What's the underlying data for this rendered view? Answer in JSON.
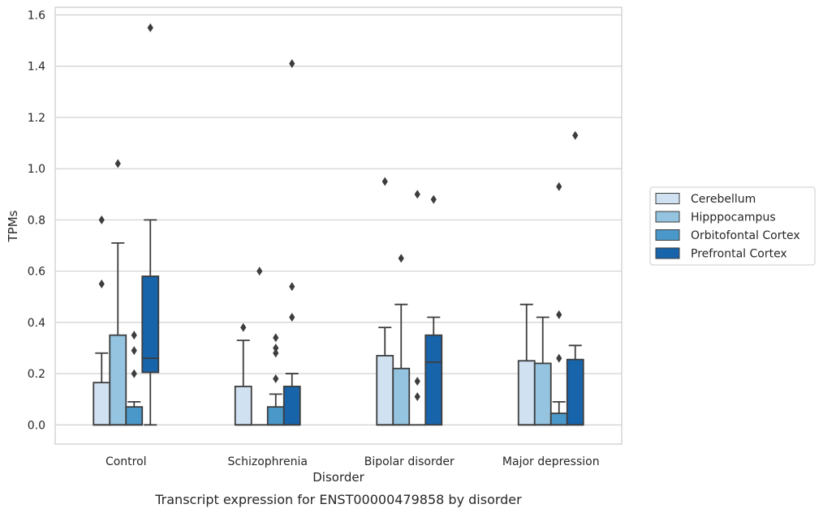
{
  "chart_data": {
    "type": "box",
    "caption": "Transcript expression for ENST00000479858 by disorder",
    "xlabel": "Disorder",
    "ylabel": "TPMs",
    "ylim": [
      -0.075,
      1.63
    ],
    "yticks": [
      "0.0",
      "0.2",
      "0.4",
      "0.6",
      "0.8",
      "1.0",
      "1.2",
      "1.4",
      "1.6"
    ],
    "grid": "horizontal",
    "legend_position": "right",
    "categories": [
      "Control",
      "Schizophrenia",
      "Bipolar disorder",
      "Major depression"
    ],
    "series": [
      {
        "name": "Cerebellum",
        "color": "#d0e1f2",
        "boxes": [
          {
            "q1": 0.0,
            "median": 0.0,
            "q3": 0.165,
            "whisker_low": 0.0,
            "whisker_high": 0.28,
            "outliers": [
              0.55,
              0.8
            ]
          },
          {
            "q1": 0.0,
            "median": 0.0,
            "q3": 0.15,
            "whisker_low": 0.0,
            "whisker_high": 0.33,
            "outliers": [
              0.38
            ]
          },
          {
            "q1": 0.0,
            "median": 0.0,
            "q3": 0.27,
            "whisker_low": 0.0,
            "whisker_high": 0.38,
            "outliers": [
              0.95
            ]
          },
          {
            "q1": 0.0,
            "median": 0.0,
            "q3": 0.25,
            "whisker_low": 0.0,
            "whisker_high": 0.47,
            "outliers": []
          }
        ]
      },
      {
        "name": "Hipppocampus",
        "color": "#94c4df",
        "boxes": [
          {
            "q1": 0.0,
            "median": 0.0,
            "q3": 0.35,
            "whisker_low": 0.0,
            "whisker_high": 0.71,
            "outliers": [
              1.02
            ]
          },
          {
            "q1": 0.0,
            "median": 0.0,
            "q3": 0.0,
            "whisker_low": 0.0,
            "whisker_high": 0.0,
            "outliers": [
              0.6
            ]
          },
          {
            "q1": 0.0,
            "median": 0.0,
            "q3": 0.22,
            "whisker_low": 0.0,
            "whisker_high": 0.47,
            "outliers": [
              0.65
            ]
          },
          {
            "q1": 0.0,
            "median": 0.0,
            "q3": 0.24,
            "whisker_low": 0.0,
            "whisker_high": 0.42,
            "outliers": []
          }
        ]
      },
      {
        "name": "Orbitofontal Cortex",
        "color": "#4a98c9",
        "boxes": [
          {
            "q1": 0.0,
            "median": 0.0,
            "q3": 0.07,
            "whisker_low": 0.0,
            "whisker_high": 0.09,
            "outliers": [
              0.2,
              0.29,
              0.35
            ]
          },
          {
            "q1": 0.0,
            "median": 0.0,
            "q3": 0.07,
            "whisker_low": 0.0,
            "whisker_high": 0.12,
            "outliers": [
              0.18,
              0.28,
              0.3,
              0.34
            ]
          },
          {
            "q1": 0.0,
            "median": 0.0,
            "q3": 0.0,
            "whisker_low": 0.0,
            "whisker_high": 0.0,
            "outliers": [
              0.11,
              0.17,
              0.9
            ]
          },
          {
            "q1": 0.0,
            "median": 0.0,
            "q3": 0.045,
            "whisker_low": 0.0,
            "whisker_high": 0.09,
            "outliers": [
              0.26,
              0.43,
              0.93
            ]
          }
        ]
      },
      {
        "name": "Prefrontal Cortex",
        "color": "#1764ab",
        "boxes": [
          {
            "q1": 0.205,
            "median": 0.26,
            "q3": 0.58,
            "whisker_low": 0.0,
            "whisker_high": 0.8,
            "outliers": [
              1.55
            ]
          },
          {
            "q1": 0.0,
            "median": 0.0,
            "q3": 0.15,
            "whisker_low": 0.0,
            "whisker_high": 0.2,
            "outliers": [
              0.42,
              0.54,
              1.41
            ]
          },
          {
            "q1": 0.0,
            "median": 0.245,
            "q3": 0.35,
            "whisker_low": 0.0,
            "whisker_high": 0.42,
            "outliers": [
              0.88
            ]
          },
          {
            "q1": 0.0,
            "median": 0.0,
            "q3": 0.255,
            "whisker_low": 0.0,
            "whisker_high": 0.31,
            "outliers": [
              1.13
            ]
          }
        ]
      }
    ]
  }
}
